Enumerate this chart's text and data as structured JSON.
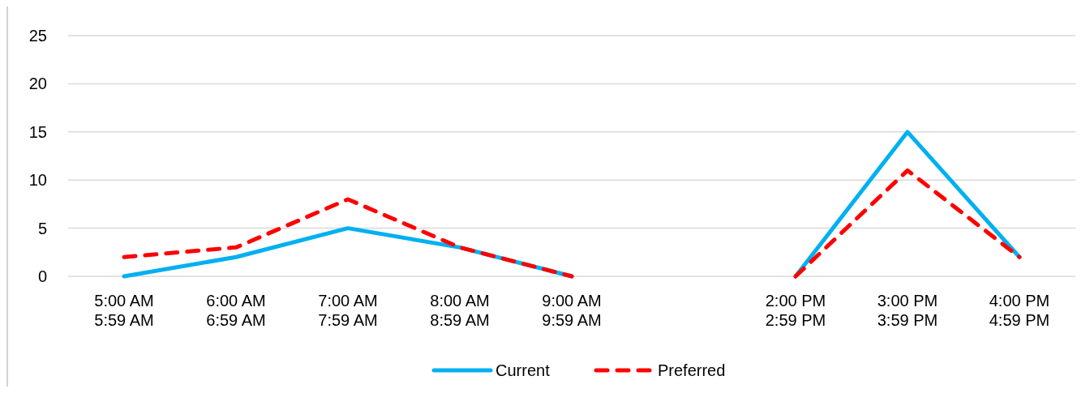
{
  "chart_data": {
    "type": "line",
    "categories": [
      "5:00 AM\n5:59 AM",
      "6:00 AM\n6:59 AM",
      "7:00 AM\n7:59 AM",
      "8:00 AM\n8:59 AM",
      "9:00 AM\n9:59 AM",
      null,
      "2:00 PM\n2:59 PM",
      "3:00 PM\n3:59 PM",
      "4:00 PM\n4:59 PM"
    ],
    "series": [
      {
        "name": "Current",
        "color": "#00b0f0",
        "line_style": "solid",
        "values": [
          0,
          2,
          5,
          3,
          0,
          null,
          0,
          15,
          2
        ]
      },
      {
        "name": "Preferred",
        "color": "#ff0000",
        "line_style": "dashed",
        "values": [
          2,
          3,
          8,
          3,
          0,
          null,
          0,
          11,
          2
        ]
      }
    ],
    "ylim": [
      0,
      25
    ],
    "yticks": [
      0,
      5,
      10,
      15,
      20,
      25
    ],
    "grid": "y",
    "legend": "bottom",
    "marker": "none"
  }
}
